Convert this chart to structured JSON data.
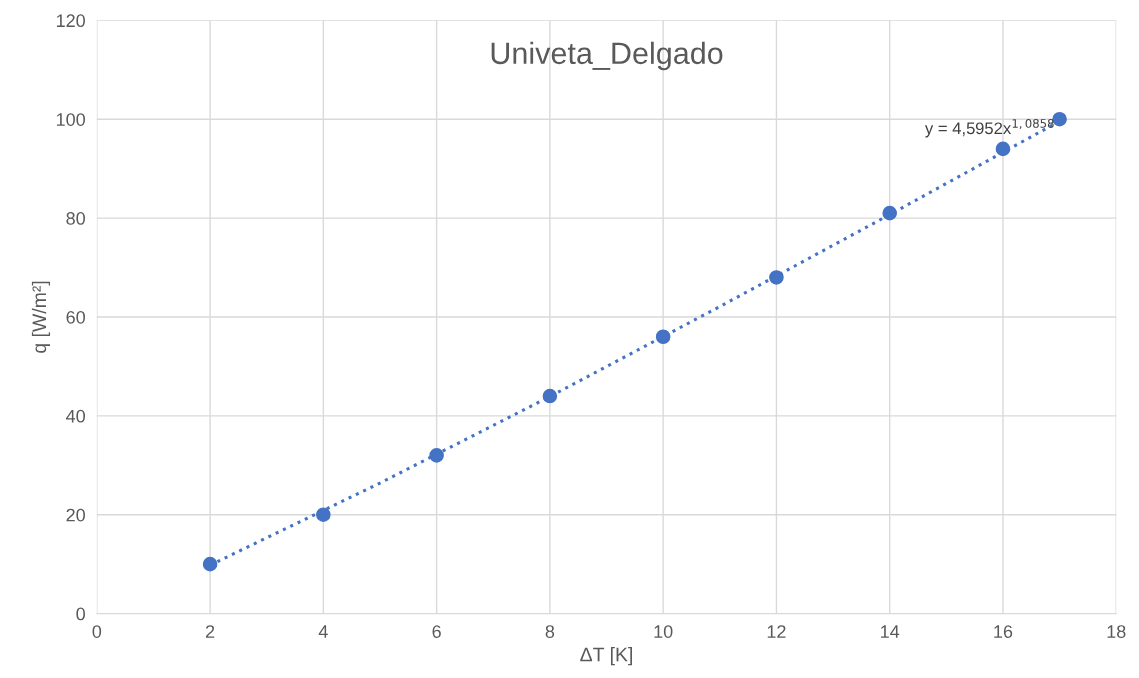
{
  "chart_data": {
    "type": "scatter",
    "title": "Univeta_Delgado",
    "xlabel": "ΔT [K]",
    "ylabel": "q [W/m²]",
    "x": [
      2,
      4,
      6,
      8,
      10,
      12,
      14,
      16,
      17
    ],
    "series": [
      {
        "color": "#4472c4",
        "values": [
          10,
          20,
          32,
          44,
          56,
          68,
          81,
          94,
          100
        ],
        "marker": "circle"
      },
      {
        "type": "line",
        "color": "#4472c4",
        "line_style": "dotted",
        "x": [
          2,
          5,
          8,
          11,
          14,
          17
        ],
        "values": [
          9.8,
          26.4,
          43.9,
          62.1,
          80.7,
          99.6
        ]
      }
    ],
    "annotations": [
      "y = 4,5952x$^{1,0858}$"
    ],
    "xlim": [
      0,
      18
    ],
    "xticks": [
      0,
      2,
      4,
      6,
      8,
      10,
      12,
      14,
      16,
      18
    ],
    "ylim": [
      0,
      120
    ],
    "yticks": [
      0,
      20,
      40,
      60,
      80,
      100,
      120
    ],
    "grid": true
  }
}
